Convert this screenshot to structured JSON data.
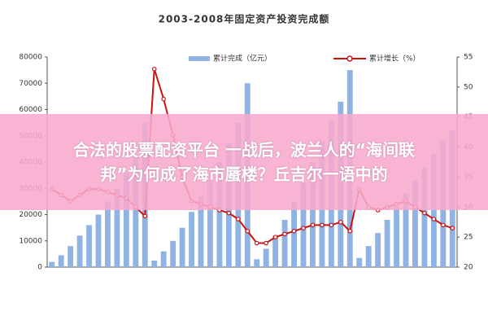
{
  "chart_data": {
    "type": "bar-line",
    "title": "2003-2008年固定资产投资完成额",
    "categories": [
      null,
      null,
      null,
      null,
      null,
      null,
      null,
      null,
      null,
      null,
      null,
      null,
      null,
      null,
      null,
      null,
      null,
      null,
      null,
      null,
      null,
      null,
      null,
      null,
      null,
      null,
      null,
      null,
      null,
      null,
      null,
      null,
      null,
      null,
      null,
      null,
      null,
      null,
      null,
      null,
      null,
      null,
      null,
      null
    ],
    "series": [
      {
        "name": "累计完成（亿元）",
        "type": "bar",
        "color": "#8fb4e3",
        "values": [
          2000,
          4500,
          8000,
          12000,
          16000,
          20000,
          25000,
          30000,
          36000,
          42000,
          55000,
          2500,
          6000,
          10000,
          15000,
          21000,
          27000,
          33000,
          40000,
          47000,
          55000,
          70000,
          3000,
          7000,
          12000,
          18000,
          25000,
          32000,
          40000,
          48000,
          56000,
          63000,
          75000,
          3500,
          8000,
          13000,
          18000,
          23000,
          28000,
          33000,
          38000,
          43000,
          48000,
          52000
        ]
      },
      {
        "name": "累计增长（%）",
        "type": "line",
        "axis": "y2",
        "color": "#cc1111",
        "values": [
          33,
          32,
          31,
          32,
          33,
          33,
          32.5,
          32,
          31.5,
          30,
          28.5,
          53,
          48,
          42,
          35,
          31,
          30.5,
          30,
          29.5,
          29,
          28,
          26,
          24,
          24,
          25,
          25.5,
          26,
          26.5,
          27,
          27,
          27,
          27.5,
          26,
          33,
          30,
          29.5,
          30,
          30.5,
          31,
          30,
          29,
          28,
          27,
          26.5
        ]
      }
    ],
    "ylim": [
      0,
      80000
    ],
    "yticks": [
      0,
      10000,
      20000,
      30000,
      40000,
      50000,
      60000,
      70000,
      80000
    ],
    "y2lim": [
      20,
      55
    ],
    "y2ticks": [
      20,
      25,
      30,
      35,
      40,
      45,
      50,
      55
    ],
    "grid": false
  },
  "banner": {
    "lines": [
      "合法的股票配资平台 一战后，波兰人的“海间联",
      "邦”为何成了海市蜃楼？丘吉尔一语中的"
    ]
  }
}
